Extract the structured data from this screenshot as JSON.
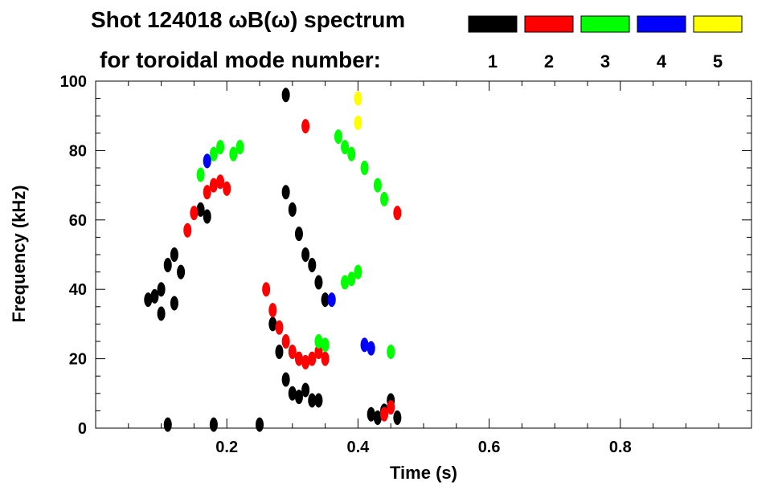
{
  "title_line1": "Shot 124018 ωB(ω) spectrum",
  "title_line2": "for toroidal mode number:",
  "chart_data": {
    "type": "heatmap",
    "title": "Shot 124018 ωB(ω) spectrum for toroidal mode number:",
    "xlabel": "Time (s)",
    "ylabel": "Frequency (kHz)",
    "xlim": [
      0.0,
      1.0
    ],
    "ylim": [
      0,
      100
    ],
    "x_ticks": [
      0.2,
      0.4,
      0.6,
      0.8
    ],
    "x_tick_labels": [
      "0.2",
      "0.4",
      "0.6",
      "0.8"
    ],
    "y_ticks": [
      0,
      20,
      40,
      60,
      80,
      100
    ],
    "y_tick_labels": [
      "0",
      "20",
      "40",
      "60",
      "80",
      "100"
    ],
    "grid": false,
    "legend_position": "top",
    "series": [
      {
        "name": "1",
        "color": "#000000",
        "points": [
          [
            0.08,
            37
          ],
          [
            0.09,
            38
          ],
          [
            0.1,
            40
          ],
          [
            0.11,
            47
          ],
          [
            0.12,
            50
          ],
          [
            0.13,
            45
          ],
          [
            0.12,
            36
          ],
          [
            0.1,
            33
          ],
          [
            0.16,
            63
          ],
          [
            0.17,
            61
          ],
          [
            0.27,
            30
          ],
          [
            0.28,
            22
          ],
          [
            0.29,
            14
          ],
          [
            0.3,
            10
          ],
          [
            0.31,
            9
          ],
          [
            0.32,
            11
          ],
          [
            0.33,
            8
          ],
          [
            0.34,
            8
          ],
          [
            0.29,
            68
          ],
          [
            0.3,
            63
          ],
          [
            0.31,
            56
          ],
          [
            0.32,
            50
          ],
          [
            0.33,
            47
          ],
          [
            0.34,
            42
          ],
          [
            0.35,
            37
          ],
          [
            0.29,
            96
          ],
          [
            0.42,
            4
          ],
          [
            0.43,
            3
          ],
          [
            0.44,
            5
          ],
          [
            0.45,
            8
          ],
          [
            0.46,
            3
          ],
          [
            0.11,
            1
          ],
          [
            0.18,
            1
          ],
          [
            0.25,
            1
          ]
        ]
      },
      {
        "name": "2",
        "color": "#ff0000",
        "points": [
          [
            0.14,
            57
          ],
          [
            0.15,
            62
          ],
          [
            0.17,
            68
          ],
          [
            0.18,
            70
          ],
          [
            0.19,
            71
          ],
          [
            0.2,
            69
          ],
          [
            0.26,
            40
          ],
          [
            0.27,
            34
          ],
          [
            0.28,
            29
          ],
          [
            0.29,
            25
          ],
          [
            0.3,
            22
          ],
          [
            0.31,
            20
          ],
          [
            0.32,
            19
          ],
          [
            0.33,
            20
          ],
          [
            0.34,
            22
          ],
          [
            0.35,
            20
          ],
          [
            0.32,
            87
          ],
          [
            0.45,
            6
          ],
          [
            0.44,
            4
          ],
          [
            0.46,
            62
          ]
        ]
      },
      {
        "name": "3",
        "color": "#00ff00",
        "points": [
          [
            0.16,
            73
          ],
          [
            0.17,
            77
          ],
          [
            0.18,
            79
          ],
          [
            0.19,
            81
          ],
          [
            0.21,
            79
          ],
          [
            0.22,
            81
          ],
          [
            0.38,
            42
          ],
          [
            0.39,
            43
          ],
          [
            0.4,
            45
          ],
          [
            0.34,
            25
          ],
          [
            0.35,
            24
          ],
          [
            0.37,
            84
          ],
          [
            0.38,
            81
          ],
          [
            0.39,
            79
          ],
          [
            0.41,
            75
          ],
          [
            0.43,
            70
          ],
          [
            0.45,
            22
          ],
          [
            0.44,
            66
          ]
        ]
      },
      {
        "name": "4",
        "color": "#0000ff",
        "points": [
          [
            0.17,
            77
          ],
          [
            0.36,
            37
          ],
          [
            0.41,
            24
          ],
          [
            0.42,
            23
          ]
        ]
      },
      {
        "name": "5",
        "color": "#ffff00",
        "points": [
          [
            0.4,
            95
          ],
          [
            0.4,
            88
          ]
        ]
      }
    ]
  }
}
